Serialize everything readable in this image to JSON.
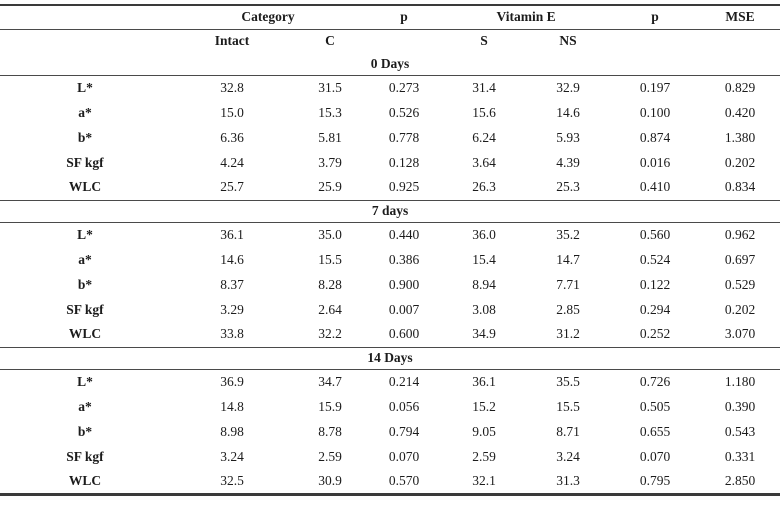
{
  "table": {
    "header": {
      "groups": [
        {
          "label": "",
          "span": 1
        },
        {
          "label": "Category",
          "span": 2
        },
        {
          "label": "p",
          "span": 1
        },
        {
          "label": "Vitamin E",
          "span": 2
        },
        {
          "label": "p",
          "span": 1
        },
        {
          "label": "MSE",
          "span": 1
        }
      ],
      "sub_headers": [
        "",
        "Intact",
        "C",
        "",
        "S",
        "NS",
        "",
        ""
      ]
    },
    "sections": [
      {
        "title": "0 Days",
        "rows": [
          {
            "label": "L*",
            "values": [
              "32.8",
              "31.5",
              "0.273",
              "31.4",
              "32.9",
              "0.197",
              "0.829"
            ]
          },
          {
            "label": "a*",
            "values": [
              "15.0",
              "15.3",
              "0.526",
              "15.6",
              "14.6",
              "0.100",
              "0.420"
            ]
          },
          {
            "label": "b*",
            "values": [
              "6.36",
              "5.81",
              "0.778",
              "6.24",
              "5.93",
              "0.874",
              "1.380"
            ]
          },
          {
            "label": "SF kgf",
            "values": [
              "4.24",
              "3.79",
              "0.128",
              "3.64",
              "4.39",
              "0.016",
              "0.202"
            ]
          },
          {
            "label": "WLC",
            "values": [
              "25.7",
              "25.9",
              "0.925",
              "26.3",
              "25.3",
              "0.410",
              "0.834"
            ]
          }
        ]
      },
      {
        "title": "7 days",
        "rows": [
          {
            "label": "L*",
            "values": [
              "36.1",
              "35.0",
              "0.440",
              "36.0",
              "35.2",
              "0.560",
              "0.962"
            ]
          },
          {
            "label": "a*",
            "values": [
              "14.6",
              "15.5",
              "0.386",
              "15.4",
              "14.7",
              "0.524",
              "0.697"
            ]
          },
          {
            "label": "b*",
            "values": [
              "8.37",
              "8.28",
              "0.900",
              "8.94",
              "7.71",
              "0.122",
              "0.529"
            ]
          },
          {
            "label": "SF kgf",
            "values": [
              "3.29",
              "2.64",
              "0.007",
              "3.08",
              "2.85",
              "0.294",
              "0.202"
            ]
          },
          {
            "label": "WLC",
            "values": [
              "33.8",
              "32.2",
              "0.600",
              "34.9",
              "31.2",
              "0.252",
              "3.070"
            ]
          }
        ]
      },
      {
        "title": "14 Days",
        "rows": [
          {
            "label": "L*",
            "values": [
              "36.9",
              "34.7",
              "0.214",
              "36.1",
              "35.5",
              "0.726",
              "1.180"
            ]
          },
          {
            "label": "a*",
            "values": [
              "14.8",
              "15.9",
              "0.056",
              "15.2",
              "15.5",
              "0.505",
              "0.390"
            ]
          },
          {
            "label": "b*",
            "values": [
              "8.98",
              "8.78",
              "0.794",
              "9.05",
              "8.71",
              "0.655",
              "0.543"
            ]
          },
          {
            "label": "SF kgf",
            "values": [
              "3.24",
              "2.59",
              "0.070",
              "2.59",
              "3.24",
              "0.070",
              "0.331"
            ]
          },
          {
            "label": "WLC",
            "values": [
              "32.5",
              "30.9",
              "0.570",
              "32.1",
              "31.3",
              "0.795",
              "2.850"
            ]
          }
        ]
      }
    ],
    "colors": {
      "rule": "#4a4a4a",
      "rule_outer": "#3a3a3a",
      "text": "#1c1c1c",
      "background": "#ffffff"
    }
  }
}
